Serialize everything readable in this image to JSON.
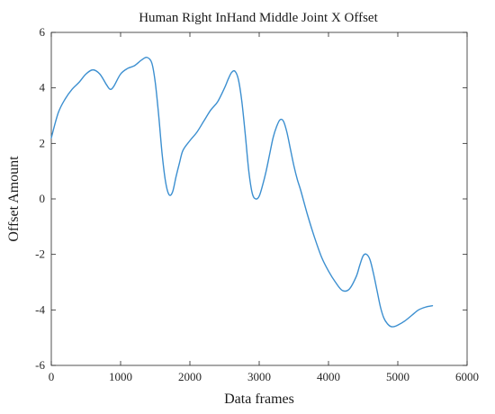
{
  "chart_data": {
    "type": "line",
    "title": "Human Right InHand Middle Joint X Offset",
    "xlabel": "Data frames",
    "ylabel": "Offset Amount",
    "xlim": [
      0,
      6000
    ],
    "ylim": [
      -6,
      6
    ],
    "xticks": [
      0,
      1000,
      2000,
      3000,
      4000,
      5000,
      6000
    ],
    "xtick_labels": [
      "0",
      "1000",
      "2000",
      "3000",
      "4000",
      "5000",
      "6000"
    ],
    "yticks": [
      -6,
      -4,
      -2,
      0,
      2,
      4,
      6
    ],
    "ytick_labels": [
      "-6",
      "-4",
      "-2",
      "0",
      "2",
      "4",
      "6"
    ],
    "grid": false,
    "series": [
      {
        "color": "#3c8fd0",
        "x": [
          0,
          100,
          200,
          300,
          400,
          500,
          600,
          700,
          800,
          850,
          900,
          1000,
          1100,
          1200,
          1300,
          1380,
          1450,
          1500,
          1550,
          1600,
          1650,
          1700,
          1750,
          1800,
          1850,
          1900,
          2000,
          2100,
          2200,
          2300,
          2400,
          2500,
          2550,
          2600,
          2650,
          2700,
          2750,
          2800,
          2850,
          2900,
          2950,
          3000,
          3050,
          3100,
          3150,
          3200,
          3250,
          3300,
          3350,
          3400,
          3450,
          3500,
          3550,
          3600,
          3700,
          3800,
          3900,
          4000,
          4100,
          4200,
          4300,
          4400,
          4450,
          4500,
          4550,
          4600,
          4650,
          4700,
          4750,
          4800,
          4850,
          4900,
          4950,
          5000,
          5100,
          5200,
          5300,
          5400,
          5500
        ],
        "y": [
          2.2,
          3.1,
          3.6,
          3.95,
          4.2,
          4.5,
          4.65,
          4.5,
          4.1,
          3.95,
          4.05,
          4.5,
          4.7,
          4.8,
          5.0,
          5.1,
          4.9,
          4.2,
          3.0,
          1.6,
          0.6,
          0.15,
          0.25,
          0.8,
          1.3,
          1.75,
          2.1,
          2.4,
          2.8,
          3.2,
          3.5,
          4.0,
          4.3,
          4.55,
          4.6,
          4.3,
          3.5,
          2.3,
          1.0,
          0.2,
          0.0,
          0.1,
          0.5,
          1.0,
          1.6,
          2.2,
          2.6,
          2.85,
          2.8,
          2.4,
          1.8,
          1.2,
          0.7,
          0.3,
          -0.6,
          -1.4,
          -2.1,
          -2.6,
          -3.0,
          -3.3,
          -3.25,
          -2.8,
          -2.4,
          -2.05,
          -2.0,
          -2.2,
          -2.7,
          -3.3,
          -3.9,
          -4.3,
          -4.5,
          -4.6,
          -4.6,
          -4.55,
          -4.4,
          -4.2,
          -4.0,
          -3.9,
          -3.85
        ]
      }
    ]
  }
}
